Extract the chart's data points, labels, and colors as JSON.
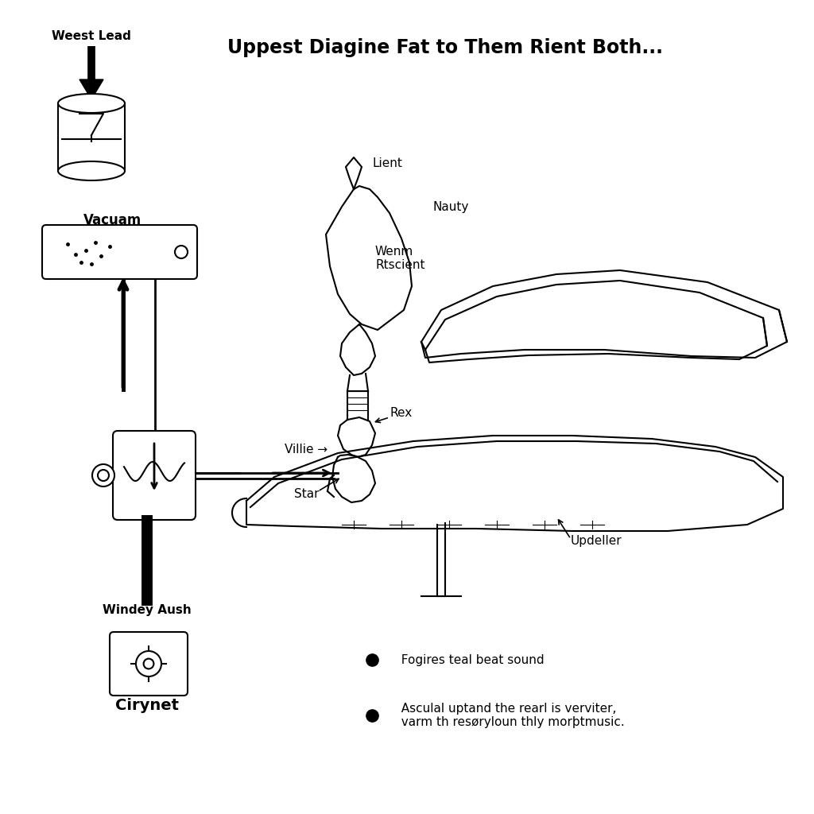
{
  "title": "Uppest Diagine Fat to Them Rient Both...",
  "background_color": "#ffffff",
  "text_color": "#000000",
  "labels": {
    "weest_lead": "Weest Lead",
    "vacuam": "Vacuam",
    "lient": "Lient",
    "nauty": "Nauty",
    "wenm_rtscient": "Wenm\nRtscient",
    "rex": "Rex",
    "villie": "Villie →",
    "star": "Star",
    "updeller": "Updeller",
    "windey_aush": "Windey Aush",
    "cirynet": "Cirynet",
    "bullet1": "  Fogires teal beat sound",
    "bullet2": "  Asculal uptand the rearl is verviter,\n  varm th resøryloun thly morþtmusic."
  }
}
